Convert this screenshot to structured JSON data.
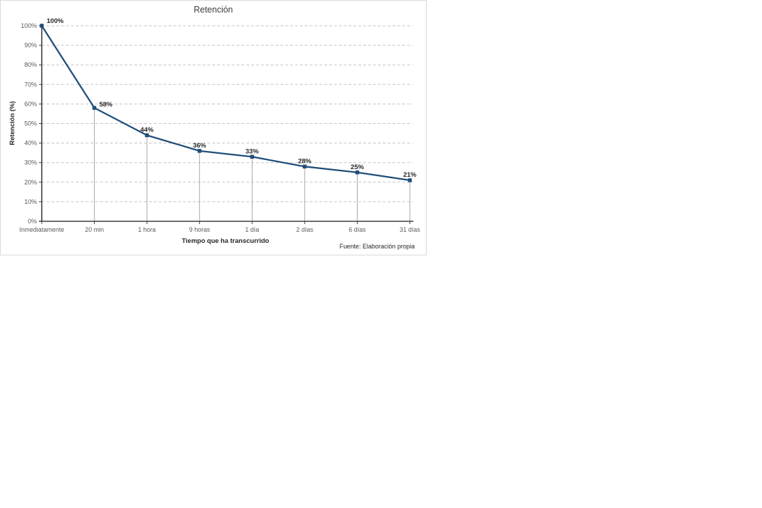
{
  "chart": {
    "title": "Retención",
    "y_axis_title": "Retención (%)",
    "x_axis_title": "Tiempo que ha transcurrido",
    "source_note": "Fuente: Elaboración propia",
    "colors": {
      "line": "#1F4E79",
      "marker": "#1F4E79",
      "gridline": "#C3C3C3",
      "axis": "#3B3B3B",
      "tick_label": "#595959",
      "data_label": "#262626",
      "drop_line": "#A6A6A6",
      "chart_border": "#D9D9D9",
      "background": "#FFFFFF"
    }
  },
  "chart_data": {
    "type": "line",
    "title": "Retención",
    "xlabel": "Tiempo que ha transcurrido",
    "ylabel": "Retención (%)",
    "categories": [
      "Inmediatamente",
      "20 min",
      "1 hora",
      "9 horas",
      "1 día",
      "2 días",
      "6 días",
      "31 días"
    ],
    "values": [
      100,
      58,
      44,
      36,
      33,
      28,
      25,
      21
    ],
    "data_labels": [
      "100%",
      "58%",
      "44%",
      "36%",
      "33%",
      "28%",
      "25%",
      "21%"
    ],
    "y_tick_labels": [
      "0%",
      "10%",
      "20%",
      "30%",
      "40%",
      "50%",
      "60%",
      "70%",
      "80%",
      "90%",
      "100%"
    ],
    "ylim": [
      0,
      100
    ],
    "y_tick_step": 10,
    "grid": "horizontal-dashed",
    "legend": "none",
    "marker": "square",
    "drop_lines": true,
    "annotation": "Fuente: Elaboración propia"
  }
}
